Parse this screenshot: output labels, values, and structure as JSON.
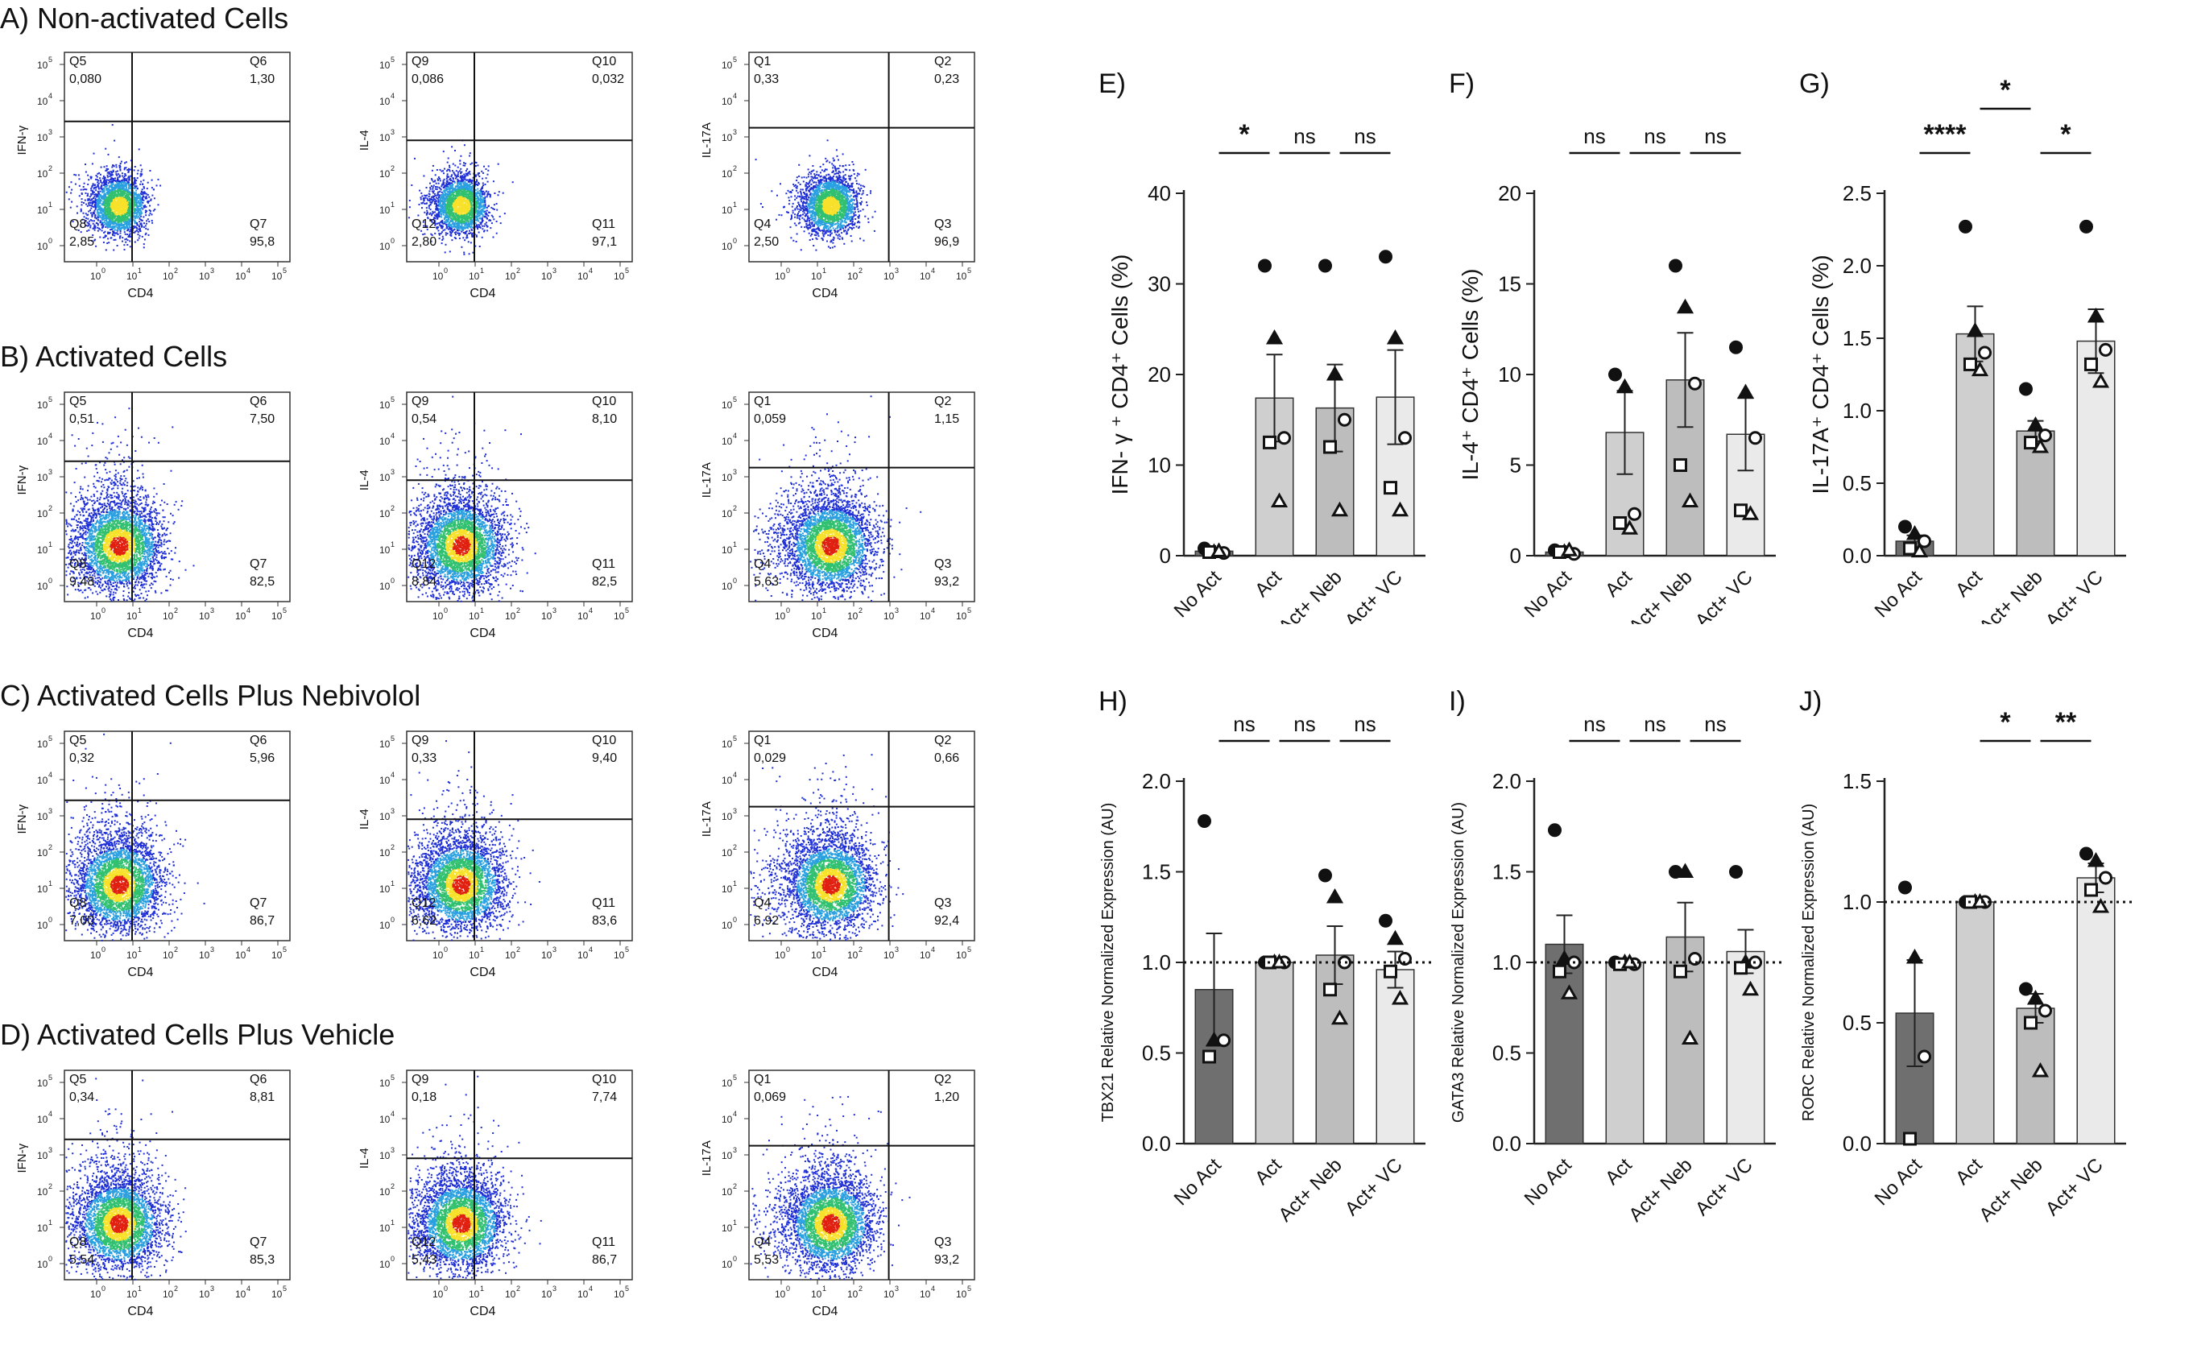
{
  "sections": [
    {
      "id": "A",
      "title": "A) Non-activated Cells"
    },
    {
      "id": "B",
      "title": "B) Activated Cells"
    },
    {
      "id": "C",
      "title": "C) Activated Cells Plus Nebivolol"
    },
    {
      "id": "D",
      "title": "D) Activated Cells Plus Vehicle"
    }
  ],
  "facs_axis": {
    "xlabel": "CD4",
    "decade_labels": [
      "10",
      "10",
      "10",
      "10",
      "10",
      "10"
    ],
    "decade_exps": [
      "0",
      "1",
      "2",
      "3",
      "4",
      "5"
    ]
  },
  "chart_data": [
    {
      "type": "scatter",
      "panel": "A-1",
      "ylabel": "IFN-γ",
      "xlabel": "CD4",
      "quadrants": [
        {
          "name": "Q5",
          "value": "0,080"
        },
        {
          "name": "Q6",
          "value": "1,30"
        },
        {
          "name": "Q8",
          "value": "2,85"
        },
        {
          "name": "Q7",
          "value": "95,8"
        }
      ]
    },
    {
      "type": "scatter",
      "panel": "A-2",
      "ylabel": "IL-4",
      "xlabel": "CD4",
      "quadrants": [
        {
          "name": "Q9",
          "value": "0,086"
        },
        {
          "name": "Q10",
          "value": "0,032"
        },
        {
          "name": "Q12",
          "value": "2,80"
        },
        {
          "name": "Q11",
          "value": "97,1"
        }
      ]
    },
    {
      "type": "scatter",
      "panel": "A-3",
      "ylabel": "IL-17A",
      "xlabel": "CD4",
      "quadrants": [
        {
          "name": "Q1",
          "value": "0,33"
        },
        {
          "name": "Q2",
          "value": "0,23"
        },
        {
          "name": "Q4",
          "value": "2,50"
        },
        {
          "name": "Q3",
          "value": "96,9"
        }
      ]
    },
    {
      "type": "scatter",
      "panel": "B-1",
      "ylabel": "IFN-γ",
      "xlabel": "CD4",
      "quadrants": [
        {
          "name": "Q5",
          "value": "0,51"
        },
        {
          "name": "Q6",
          "value": "7,50"
        },
        {
          "name": "Q8",
          "value": "9,48"
        },
        {
          "name": "Q7",
          "value": "82,5"
        }
      ]
    },
    {
      "type": "scatter",
      "panel": "B-2",
      "ylabel": "IL-4",
      "xlabel": "CD4",
      "quadrants": [
        {
          "name": "Q9",
          "value": "0,54"
        },
        {
          "name": "Q10",
          "value": "8,10"
        },
        {
          "name": "Q12",
          "value": "8,84"
        },
        {
          "name": "Q11",
          "value": "82,5"
        }
      ]
    },
    {
      "type": "scatter",
      "panel": "B-3",
      "ylabel": "IL-17A",
      "xlabel": "CD4",
      "quadrants": [
        {
          "name": "Q1",
          "value": "0,059"
        },
        {
          "name": "Q2",
          "value": "1,15"
        },
        {
          "name": "Q4",
          "value": "5,63"
        },
        {
          "name": "Q3",
          "value": "93,2"
        }
      ]
    },
    {
      "type": "scatter",
      "panel": "C-1",
      "ylabel": "IFN-γ",
      "xlabel": "CD4",
      "quadrants": [
        {
          "name": "Q5",
          "value": "0,32"
        },
        {
          "name": "Q6",
          "value": "5,96"
        },
        {
          "name": "Q8",
          "value": "7,00"
        },
        {
          "name": "Q7",
          "value": "86,7"
        }
      ]
    },
    {
      "type": "scatter",
      "panel": "C-2",
      "ylabel": "IL-4",
      "xlabel": "CD4",
      "quadrants": [
        {
          "name": "Q9",
          "value": "0,33"
        },
        {
          "name": "Q10",
          "value": "9,40"
        },
        {
          "name": "Q12",
          "value": "6,62"
        },
        {
          "name": "Q11",
          "value": "83,6"
        }
      ]
    },
    {
      "type": "scatter",
      "panel": "C-3",
      "ylabel": "IL-17A",
      "xlabel": "CD4",
      "quadrants": [
        {
          "name": "Q1",
          "value": "0,029"
        },
        {
          "name": "Q2",
          "value": "0,66"
        },
        {
          "name": "Q4",
          "value": "6,92"
        },
        {
          "name": "Q3",
          "value": "92,4"
        }
      ]
    },
    {
      "type": "scatter",
      "panel": "D-1",
      "ylabel": "IFN-γ",
      "xlabel": "CD4",
      "quadrants": [
        {
          "name": "Q5",
          "value": "0,34"
        },
        {
          "name": "Q6",
          "value": "8,81"
        },
        {
          "name": "Q8",
          "value": "5,54"
        },
        {
          "name": "Q7",
          "value": "85,3"
        }
      ]
    },
    {
      "type": "scatter",
      "panel": "D-2",
      "ylabel": "IL-4",
      "xlabel": "CD4",
      "quadrants": [
        {
          "name": "Q9",
          "value": "0,18"
        },
        {
          "name": "Q10",
          "value": "7,74"
        },
        {
          "name": "Q12",
          "value": "5,43"
        },
        {
          "name": "Q11",
          "value": "86,7"
        }
      ]
    },
    {
      "type": "scatter",
      "panel": "D-3",
      "ylabel": "IL-17A",
      "xlabel": "CD4",
      "quadrants": [
        {
          "name": "Q1",
          "value": "0,069"
        },
        {
          "name": "Q2",
          "value": "1,20"
        },
        {
          "name": "Q4",
          "value": "5,53"
        },
        {
          "name": "Q3",
          "value": "93,2"
        }
      ]
    },
    {
      "type": "bar",
      "panel": "E",
      "label": "E)",
      "ylabel": "IFN- γ ⁺ CD4⁺ Cells (%)",
      "categories": [
        "No Act",
        "Act",
        "Act+ Neb",
        "Act+ VC"
      ],
      "values": [
        0.5,
        17.4,
        16.3,
        17.5
      ],
      "errors": [
        0.3,
        4.8,
        4.8,
        5.2
      ],
      "ylim": [
        0,
        40
      ],
      "yticks": [
        "0",
        "10",
        "20",
        "30",
        "40"
      ],
      "ytick_values": [
        0,
        10,
        20,
        30,
        40
      ],
      "reference_line": null,
      "points": [
        [
          0.8,
          0.4,
          0.3,
          0.4,
          0.5
        ],
        [
          32.0,
          24.0,
          13.0,
          12.5,
          6.0
        ],
        [
          32.0,
          20.0,
          15.0,
          12.0,
          5.0
        ],
        [
          33.0,
          24.0,
          13.0,
          7.5,
          5.0
        ]
      ],
      "significance": [
        {
          "from": 0,
          "to": 1,
          "label": "*",
          "level": 0
        },
        {
          "from": 1,
          "to": 2,
          "label": "ns",
          "level": 0
        },
        {
          "from": 2,
          "to": 3,
          "label": "ns",
          "level": 0
        }
      ]
    },
    {
      "type": "bar",
      "panel": "F",
      "label": "F)",
      "ylabel": "IL-4⁺ CD4⁺ Cells (%)",
      "categories": [
        "No Act",
        "Act",
        "Act+ Neb",
        "Act+ VC"
      ],
      "values": [
        0.2,
        6.8,
        9.7,
        6.7
      ],
      "errors": [
        0.1,
        2.3,
        2.6,
        2.0
      ],
      "ylim": [
        0,
        20
      ],
      "yticks": [
        "0",
        "5",
        "10",
        "15",
        "20"
      ],
      "ytick_values": [
        0,
        5,
        10,
        15,
        20
      ],
      "reference_line": null,
      "points": [
        [
          0.3,
          0.2,
          0.1,
          0.2,
          0.3
        ],
        [
          10.0,
          9.3,
          2.3,
          1.8,
          1.5
        ],
        [
          16.0,
          13.7,
          9.5,
          5.0,
          3.0
        ],
        [
          11.5,
          9.0,
          6.5,
          2.5,
          2.3
        ]
      ],
      "significance": [
        {
          "from": 0,
          "to": 1,
          "label": "ns",
          "level": 0
        },
        {
          "from": 1,
          "to": 2,
          "label": "ns",
          "level": 0
        },
        {
          "from": 2,
          "to": 3,
          "label": "ns",
          "level": 0
        }
      ]
    },
    {
      "type": "bar",
      "panel": "G",
      "label": "G)",
      "ylabel": "IL-17A⁺ CD4⁺ Cells (%)",
      "categories": [
        "No Act",
        "Act",
        "Act+ Neb",
        "Act+ VC"
      ],
      "values": [
        0.1,
        1.53,
        0.86,
        1.48
      ],
      "errors": [
        0.04,
        0.19,
        0.07,
        0.22
      ],
      "ylim": [
        0,
        2.5
      ],
      "yticks": [
        "0.0",
        "0.5",
        "1.0",
        "1.5",
        "2.0",
        "2.5"
      ],
      "ytick_values": [
        0,
        0.5,
        1.0,
        1.5,
        2.0,
        2.5
      ],
      "reference_line": null,
      "points": [
        [
          0.2,
          0.15,
          0.1,
          0.05,
          0.03
        ],
        [
          2.27,
          1.55,
          1.4,
          1.32,
          1.28
        ],
        [
          1.15,
          0.9,
          0.83,
          0.78,
          0.75
        ],
        [
          2.27,
          1.65,
          1.42,
          1.32,
          1.2
        ]
      ],
      "significance": [
        {
          "from": 0,
          "to": 1,
          "label": "****",
          "level": 0
        },
        {
          "from": 2,
          "to": 3,
          "label": "*",
          "level": 0
        },
        {
          "from": 1,
          "to": 2,
          "label": "*",
          "level": 1
        }
      ]
    },
    {
      "type": "bar",
      "panel": "H",
      "label": "H)",
      "ylabel": "TBX21 Relative Normalized Expression (AU)",
      "categories": [
        "No Act",
        "Act",
        "Act+ Neb",
        "Act+ VC"
      ],
      "values": [
        0.85,
        1.0,
        1.04,
        0.96
      ],
      "errors": [
        0.31,
        0.01,
        0.16,
        0.1
      ],
      "ylim": [
        0,
        2.0
      ],
      "yticks": [
        "0.0",
        "0.5",
        "1.0",
        "1.5",
        "2.0"
      ],
      "ytick_values": [
        0,
        0.5,
        1.0,
        1.5,
        2.0
      ],
      "reference_line": 1.0,
      "points": [
        [
          1.78,
          0.57,
          0.57,
          0.48
        ],
        [
          1.0,
          1.0,
          1.0,
          1.0,
          1.0
        ],
        [
          1.48,
          1.36,
          1.0,
          0.85,
          0.69
        ],
        [
          1.23,
          1.13,
          1.02,
          0.95,
          0.8
        ]
      ],
      "significance": [
        {
          "from": 0,
          "to": 1,
          "label": "ns",
          "level": 0
        },
        {
          "from": 1,
          "to": 2,
          "label": "ns",
          "level": 0
        },
        {
          "from": 2,
          "to": 3,
          "label": "ns",
          "level": 0
        }
      ]
    },
    {
      "type": "bar",
      "panel": "I",
      "label": "I)",
      "ylabel": "GATA3 Relative Normalized Expression (AU)",
      "categories": [
        "No Act",
        "Act",
        "Act+ Neb",
        "Act+ VC"
      ],
      "values": [
        1.1,
        1.0,
        1.14,
        1.06
      ],
      "errors": [
        0.16,
        0.01,
        0.19,
        0.12
      ],
      "ylim": [
        0,
        2.0
      ],
      "yticks": [
        "0.0",
        "0.5",
        "1.0",
        "1.5",
        "2.0"
      ],
      "ytick_values": [
        0,
        0.5,
        1.0,
        1.5,
        2.0
      ],
      "reference_line": 1.0,
      "points": [
        [
          1.73,
          1.02,
          1.0,
          0.95,
          0.83
        ],
        [
          1.0,
          1.0,
          0.99,
          0.99,
          1.0
        ],
        [
          1.5,
          1.5,
          1.02,
          0.95,
          0.58
        ],
        [
          1.5,
          1.0,
          1.0,
          0.97,
          0.85
        ]
      ],
      "significance": [
        {
          "from": 0,
          "to": 1,
          "label": "ns",
          "level": 0
        },
        {
          "from": 1,
          "to": 2,
          "label": "ns",
          "level": 0
        },
        {
          "from": 2,
          "to": 3,
          "label": "ns",
          "level": 0
        }
      ]
    },
    {
      "type": "bar",
      "panel": "J",
      "label": "J)",
      "ylabel": "RORC Relative Normalized Expression (AU)",
      "categories": [
        "No Act",
        "Act",
        "Act+ Neb",
        "Act+ VC"
      ],
      "values": [
        0.54,
        1.0,
        0.56,
        1.1
      ],
      "errors": [
        0.22,
        0.01,
        0.06,
        0.06
      ],
      "ylim": [
        0,
        1.5
      ],
      "yticks": [
        "0.0",
        "0.5",
        "1.0",
        "1.5"
      ],
      "ytick_values": [
        0,
        0.5,
        1.0,
        1.5
      ],
      "reference_line": 1.0,
      "points": [
        [
          1.06,
          0.77,
          0.36,
          0.02
        ],
        [
          1.0,
          1.0,
          1.0,
          1.0,
          1.0
        ],
        [
          0.64,
          0.6,
          0.55,
          0.5,
          0.3
        ],
        [
          1.2,
          1.17,
          1.1,
          1.05,
          0.98
        ]
      ],
      "significance": [
        {
          "from": 1,
          "to": 2,
          "label": "*",
          "level": 0
        },
        {
          "from": 2,
          "to": 3,
          "label": "**",
          "level": 0
        }
      ]
    }
  ],
  "colors": {
    "bar_no_act": "#6f6f6f",
    "bar_act": "#cfcfcf",
    "bar_neb": "#bdbdbd",
    "bar_vc": "#eaeaea",
    "dot_blue": "#1f2fd6",
    "density_red": "#e02010",
    "density_yellow": "#f7e12a",
    "density_green": "#30c070"
  },
  "marker_shapes": [
    "circle-filled",
    "triangle-filled",
    "circle-open",
    "square-open",
    "triangle-open"
  ]
}
